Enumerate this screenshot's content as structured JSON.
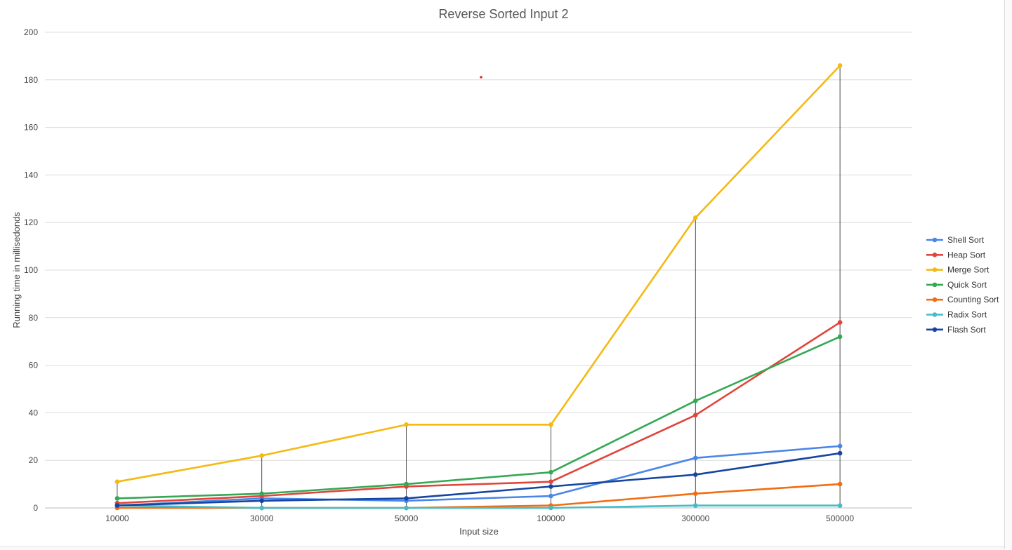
{
  "chart_data": {
    "type": "line",
    "title": "Reverse Sorted Input 2",
    "xlabel": "Input size",
    "ylabel": "Running time in millisedonds",
    "categories": [
      "10000",
      "30000",
      "50000",
      "100000",
      "300000",
      "500000"
    ],
    "ylim": [
      0,
      200
    ],
    "yticks": [
      "0",
      "20",
      "40",
      "60",
      "80",
      "100",
      "120",
      "140",
      "160",
      "180",
      "200"
    ],
    "grid": true,
    "legend_position": "right",
    "series": [
      {
        "name": "Shell Sort",
        "color": "#4a86e8",
        "values": [
          1,
          4,
          3,
          5,
          21,
          26
        ]
      },
      {
        "name": "Heap Sort",
        "color": "#e0443a",
        "values": [
          2,
          5,
          9,
          11,
          39,
          78
        ]
      },
      {
        "name": "Merge Sort",
        "color": "#f4b913",
        "values": [
          11,
          22,
          35,
          35,
          122,
          186
        ]
      },
      {
        "name": "Quick Sort",
        "color": "#34a853",
        "values": [
          4,
          6,
          10,
          15,
          45,
          72
        ]
      },
      {
        "name": "Counting Sort",
        "color": "#f26c12",
        "values": [
          0,
          0,
          0,
          1,
          6,
          10
        ]
      },
      {
        "name": "Radix Sort",
        "color": "#46bdc6",
        "values": [
          1,
          0,
          0,
          0,
          1,
          1
        ]
      },
      {
        "name": " Flash Sort",
        "color": "#1545a0",
        "values": [
          1,
          3,
          4,
          9,
          14,
          23
        ]
      }
    ]
  }
}
